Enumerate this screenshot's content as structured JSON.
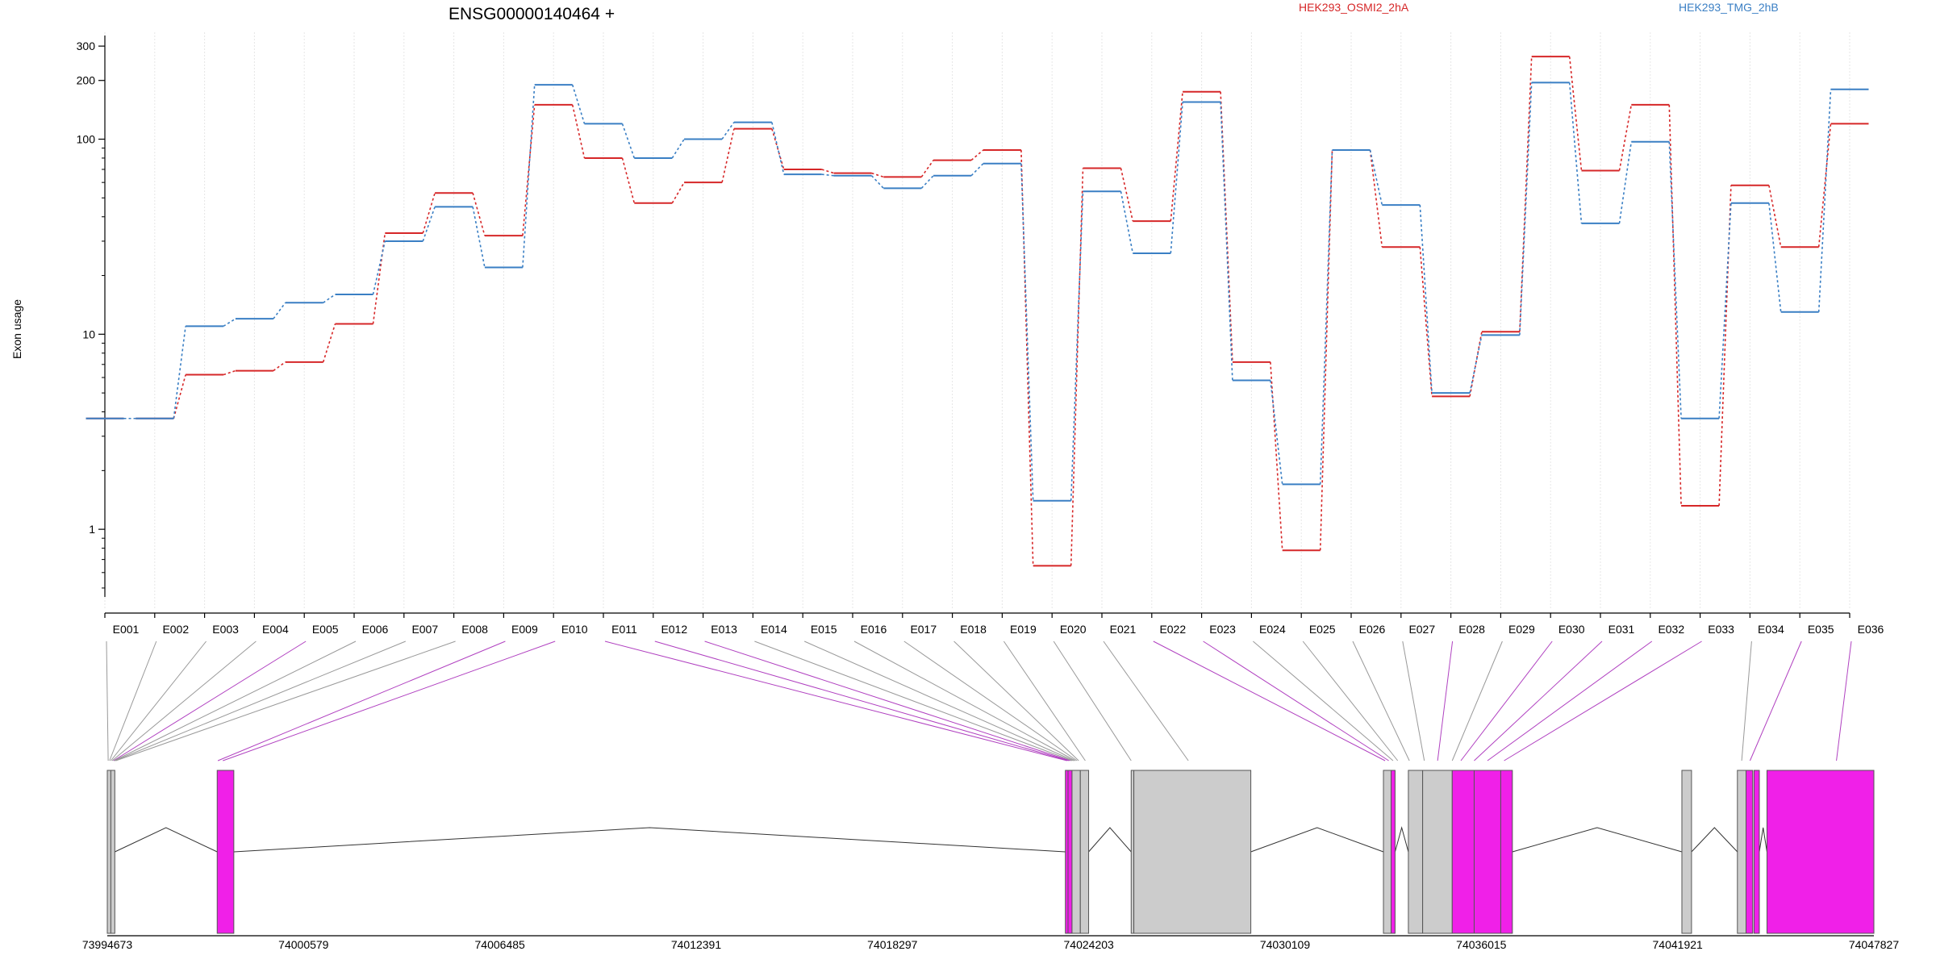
{
  "chart_data": {
    "type": "line",
    "title": "ENSG00000140464 +",
    "ylabel": "Exon usage",
    "yscale": "log",
    "ylim": [
      0.45,
      340
    ],
    "yticks": [
      1,
      10,
      100,
      200,
      300
    ],
    "ytick_labels": [
      "1",
      "10",
      "100",
      "200",
      "300"
    ],
    "categories": [
      "E001",
      "E002",
      "E003",
      "E004",
      "E005",
      "E006",
      "E007",
      "E008",
      "E009",
      "E010",
      "E011",
      "E012",
      "E013",
      "E014",
      "E015",
      "E016",
      "E017",
      "E018",
      "E019",
      "E020",
      "E021",
      "E022",
      "E023",
      "E024",
      "E025",
      "E026",
      "E027",
      "E028",
      "E029",
      "E030",
      "E031",
      "E032",
      "E033",
      "E034",
      "E035",
      "E036"
    ],
    "series": [
      {
        "name": "HEK293_OSMI2_2hA",
        "color": "#d62728",
        "values": [
          3.7,
          3.7,
          6.2,
          6.5,
          7.2,
          11.3,
          33,
          53,
          32,
          150,
          80,
          47,
          60,
          113,
          70,
          67,
          64,
          78,
          88,
          0.65,
          71,
          38,
          175,
          7.2,
          0.78,
          88,
          28,
          4.8,
          10.3,
          265,
          69,
          150,
          1.32,
          58,
          28,
          120
        ]
      },
      {
        "name": "HEK293_TMG_2hB",
        "color": "#3a7fc4",
        "values": [
          3.7,
          3.7,
          11,
          12,
          14.5,
          16,
          30,
          45,
          22,
          190,
          120,
          80,
          100,
          122,
          66,
          65,
          56,
          65,
          75,
          1.4,
          54,
          26,
          155,
          5.8,
          1.7,
          88,
          46,
          5,
          9.9,
          195,
          37,
          97,
          3.7,
          47,
          13,
          180
        ]
      }
    ],
    "genome": {
      "tick_labels": [
        "73994673",
        "74000579",
        "74006485",
        "74012391",
        "74018297",
        "74024203",
        "74030109",
        "74036015",
        "74041921",
        "74047827"
      ],
      "range": [
        73994673,
        74047827
      ],
      "exons": [
        {
          "start": 73994673,
          "end": 73994780,
          "highlight": false
        },
        {
          "start": 73994780,
          "end": 73994900,
          "highlight": false
        },
        {
          "start": 73997980,
          "end": 73998480,
          "highlight": true
        },
        {
          "start": 74023500,
          "end": 74023580,
          "highlight": true
        },
        {
          "start": 74023580,
          "end": 74023700,
          "highlight": true
        },
        {
          "start": 74023700,
          "end": 74023950,
          "highlight": false
        },
        {
          "start": 74023950,
          "end": 74024200,
          "highlight": false
        },
        {
          "start": 74025480,
          "end": 74025560,
          "highlight": false
        },
        {
          "start": 74025560,
          "end": 74029080,
          "highlight": false
        },
        {
          "start": 74033070,
          "end": 74033300,
          "highlight": false
        },
        {
          "start": 74033300,
          "end": 74033420,
          "highlight": true
        },
        {
          "start": 74033820,
          "end": 74034250,
          "highlight": false
        },
        {
          "start": 74034250,
          "end": 74035140,
          "highlight": false
        },
        {
          "start": 74035140,
          "end": 74035800,
          "highlight": true
        },
        {
          "start": 74035800,
          "end": 74036600,
          "highlight": true
        },
        {
          "start": 74036600,
          "end": 74036950,
          "highlight": true
        },
        {
          "start": 74042050,
          "end": 74042340,
          "highlight": false
        },
        {
          "start": 74043720,
          "end": 74043980,
          "highlight": false
        },
        {
          "start": 74043980,
          "end": 74044180,
          "highlight": true
        },
        {
          "start": 74044220,
          "end": 74044380,
          "highlight": true
        },
        {
          "start": 74044610,
          "end": 74047827,
          "highlight": true
        }
      ],
      "introns": [
        [
          73994900,
          73997980
        ],
        [
          73998480,
          74023500
        ],
        [
          74024200,
          74025480
        ],
        [
          74029080,
          74033070
        ],
        [
          74033420,
          74033820
        ],
        [
          74036950,
          74042050
        ],
        [
          74042340,
          74043720
        ],
        [
          74044380,
          74044610
        ]
      ],
      "exon_map": [
        {
          "exon": "E001",
          "pos": 73994700,
          "highlight": false
        },
        {
          "exon": "E002",
          "pos": 73994740,
          "highlight": false
        },
        {
          "exon": "E003",
          "pos": 73994780,
          "highlight": false
        },
        {
          "exon": "E004",
          "pos": 73994820,
          "highlight": false
        },
        {
          "exon": "E005",
          "pos": 73994860,
          "highlight": true
        },
        {
          "exon": "E006",
          "pos": 73994880,
          "highlight": false
        },
        {
          "exon": "E007",
          "pos": 73994900,
          "highlight": false
        },
        {
          "exon": "E008",
          "pos": 73994930,
          "highlight": false
        },
        {
          "exon": "E009",
          "pos": 73998000,
          "highlight": true
        },
        {
          "exon": "E010",
          "pos": 73998150,
          "highlight": true
        },
        {
          "exon": "E011",
          "pos": 74023550,
          "highlight": true
        },
        {
          "exon": "E012",
          "pos": 74023600,
          "highlight": true
        },
        {
          "exon": "E013",
          "pos": 74023650,
          "highlight": true
        },
        {
          "exon": "E014",
          "pos": 74023700,
          "highlight": false
        },
        {
          "exon": "E015",
          "pos": 74023750,
          "highlight": false
        },
        {
          "exon": "E016",
          "pos": 74023800,
          "highlight": false
        },
        {
          "exon": "E017",
          "pos": 74023850,
          "highlight": false
        },
        {
          "exon": "E018",
          "pos": 74023900,
          "highlight": false
        },
        {
          "exon": "E019",
          "pos": 74024100,
          "highlight": false
        },
        {
          "exon": "E020",
          "pos": 74025480,
          "highlight": false
        },
        {
          "exon": "E021",
          "pos": 74027200,
          "highlight": false
        },
        {
          "exon": "E022",
          "pos": 74033120,
          "highlight": true
        },
        {
          "exon": "E023",
          "pos": 74033230,
          "highlight": true
        },
        {
          "exon": "E024",
          "pos": 74033360,
          "highlight": false
        },
        {
          "exon": "E025",
          "pos": 74033500,
          "highlight": false
        },
        {
          "exon": "E026",
          "pos": 74033850,
          "highlight": false
        },
        {
          "exon": "E027",
          "pos": 74034300,
          "highlight": false
        },
        {
          "exon": "E028",
          "pos": 74034700,
          "highlight": true
        },
        {
          "exon": "E029",
          "pos": 74035140,
          "highlight": false
        },
        {
          "exon": "E030",
          "pos": 74035400,
          "highlight": true
        },
        {
          "exon": "E031",
          "pos": 74035800,
          "highlight": true
        },
        {
          "exon": "E032",
          "pos": 74036200,
          "highlight": true
        },
        {
          "exon": "E033",
          "pos": 74036700,
          "highlight": true
        },
        {
          "exon": "E034",
          "pos": 74042150,
          "highlight": false
        },
        {
          "exon": "E035",
          "pos": 74043850,
          "highlight": false
        },
        {
          "exon": "E036",
          "pos": 74044050,
          "highlight": true
        }
      ],
      "exon_map_fix": [
        {
          "exon": "E034",
          "pos": 74043850,
          "highlight": false
        },
        {
          "exon": "E035",
          "pos": 74044100,
          "highlight": true
        },
        {
          "exon": "E036",
          "pos": 74046700,
          "highlight": true
        }
      ],
      "colors": {
        "highlight": "#f020e8",
        "plain": "#cccccc",
        "link_plain": "#999999",
        "link_highlight": "#b040c0"
      }
    }
  }
}
